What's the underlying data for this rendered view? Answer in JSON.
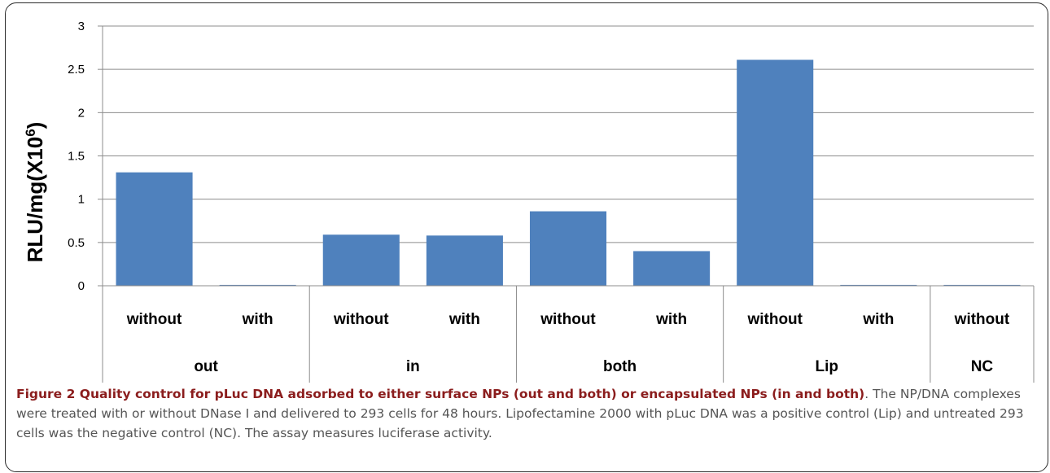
{
  "chart_data": {
    "type": "bar",
    "ylabel": "RLU/mg(X10",
    "ylabel_sup": "6",
    "ylabel_close": ")",
    "ylim": [
      0,
      3
    ],
    "yticks": [
      "0",
      "0.5",
      "1",
      "1.5",
      "2",
      "2.5",
      "3"
    ],
    "grid": true,
    "bar_color": "#4f81bd",
    "bars": [
      {
        "label": "without",
        "group": "out",
        "value": 1.31
      },
      {
        "label": "with",
        "group": "out",
        "value": 0.01
      },
      {
        "label": "without",
        "group": "in",
        "value": 0.59
      },
      {
        "label": "with",
        "group": "in",
        "value": 0.58
      },
      {
        "label": "without",
        "group": "both",
        "value": 0.86
      },
      {
        "label": "with",
        "group": "both",
        "value": 0.4
      },
      {
        "label": "without",
        "group": "Lip",
        "value": 2.61
      },
      {
        "label": "with",
        "group": "Lip",
        "value": 0.01
      },
      {
        "label": "without",
        "group": "NC",
        "value": 0.01
      }
    ],
    "groups": [
      "out",
      "in",
      "both",
      "Lip",
      "NC"
    ]
  },
  "caption": {
    "title": "Figure 2 Quality control for pLuc DNA adsorbed to either surface NPs (out and both) or encapsulated NPs (in and both)",
    "body": ". The NP/DNA complexes were treated with or without DNase I and delivered to 293 cells for 48 hours. Lipofectamine 2000 with pLuc DNA was a positive control (Lip) and untreated 293 cells was the negative control (NC). The assay measures luciferase activity."
  }
}
